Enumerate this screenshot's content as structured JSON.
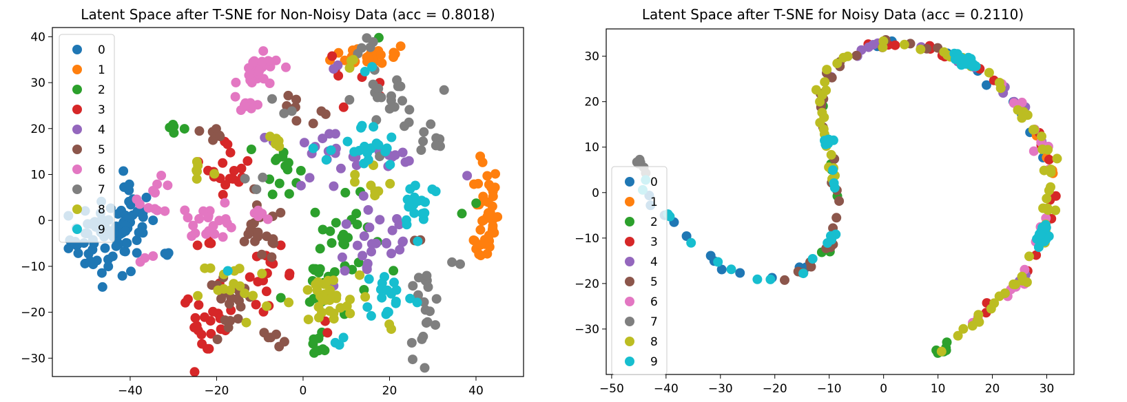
{
  "figure": {
    "legend_title": "",
    "class_labels": [
      "0",
      "1",
      "2",
      "3",
      "4",
      "5",
      "6",
      "7",
      "8",
      "9"
    ],
    "class_colors": [
      "#1f77b4",
      "#ff7f0e",
      "#2ca02c",
      "#d62728",
      "#9467bd",
      "#8c564b",
      "#e377c2",
      "#7f7f7f",
      "#bcbd22",
      "#17becf"
    ]
  },
  "chart_data": [
    {
      "type": "scatter",
      "title": "Latent Space after T-SNE for Non-Noisy Data (acc = 0.8018)",
      "xlabel": "",
      "ylabel": "",
      "xlim": [
        -58,
        51
      ],
      "ylim": [
        -34,
        42
      ],
      "xticks": [
        -40,
        -20,
        0,
        20,
        40
      ],
      "yticks": [
        -30,
        -20,
        -10,
        0,
        10,
        20,
        30,
        40
      ],
      "xtick_labels": [
        "−40",
        "−20",
        "0",
        "20",
        "40"
      ],
      "ytick_labels": [
        "−30",
        "−20",
        "−10",
        "0",
        "10",
        "20",
        "30",
        "40"
      ],
      "grid": false,
      "legend_position": "upper-left",
      "series": [
        {
          "name": "0",
          "clusters": [
            {
              "cx": -45,
              "cy": -4,
              "sx": 4.5,
              "sy": 4.0,
              "n": 70
            },
            {
              "cx": -40,
              "cy": 2,
              "sx": 2.5,
              "sy": 3.5,
              "n": 20
            },
            {
              "cx": -31,
              "cy": -8,
              "sx": 1,
              "sy": 1,
              "n": 3
            }
          ]
        },
        {
          "name": "1",
          "clusters": [
            {
              "cx": 42.5,
              "cy": 2,
              "sx": 1.3,
              "sy": 5.5,
              "n": 40
            },
            {
              "cx": 40,
              "cy": -6,
              "sx": 1.5,
              "sy": 1.5,
              "n": 7
            },
            {
              "cx": 16,
              "cy": 36,
              "sx": 4.5,
              "sy": 1.3,
              "n": 30
            }
          ]
        },
        {
          "name": "2",
          "clusters": [
            {
              "cx": -30,
              "cy": 20,
              "sx": 1.5,
              "sy": 1,
              "n": 5
            },
            {
              "cx": -5,
              "cy": 12,
              "sx": 2,
              "sy": 3,
              "n": 14
            },
            {
              "cx": 10,
              "cy": -3,
              "sx": 4,
              "sy": 4,
              "n": 22
            },
            {
              "cx": 3,
              "cy": -14,
              "sx": 4,
              "sy": 4,
              "n": 18
            },
            {
              "cx": 4,
              "cy": -27,
              "sx": 2,
              "sy": 1.5,
              "n": 8
            },
            {
              "cx": 38,
              "cy": 2,
              "sx": 1,
              "sy": 1,
              "n": 2
            },
            {
              "cx": 18,
              "cy": 40,
              "sx": 0.5,
              "sy": 0.5,
              "n": 1
            }
          ]
        },
        {
          "name": "3",
          "clusters": [
            {
              "cx": -17,
              "cy": 12,
              "sx": 2.5,
              "sy": 3,
              "n": 18
            },
            {
              "cx": -22,
              "cy": -23,
              "sx": 3,
              "sy": 4,
              "n": 22
            },
            {
              "cx": -8,
              "cy": -12,
              "sx": 3,
              "sy": 3,
              "n": 15
            },
            {
              "cx": 8,
              "cy": 30,
              "sx": 2,
              "sy": 3,
              "n": 4
            },
            {
              "cx": 15,
              "cy": 30,
              "sx": 3,
              "sy": 2,
              "n": 3
            },
            {
              "cx": -22,
              "cy": -5,
              "sx": 1.5,
              "sy": 1.5,
              "n": 4
            },
            {
              "cx": 5,
              "cy": -21,
              "sx": 2,
              "sy": 2,
              "n": 3
            }
          ]
        },
        {
          "name": "4",
          "clusters": [
            {
              "cx": 5,
              "cy": 13,
              "sx": 4,
              "sy": 3,
              "n": 18
            },
            {
              "cx": 17,
              "cy": -5,
              "sx": 5,
              "sy": 5,
              "n": 25
            },
            {
              "cx": 20,
              "cy": 14,
              "sx": 4,
              "sy": 2,
              "n": 10
            },
            {
              "cx": 8,
              "cy": 34,
              "sx": 1,
              "sy": 1,
              "n": 2
            },
            {
              "cx": 38,
              "cy": 10,
              "sx": 0.5,
              "sy": 0.5,
              "n": 1
            },
            {
              "cx": -8,
              "cy": 17,
              "sx": 1,
              "sy": 1,
              "n": 2
            }
          ]
        },
        {
          "name": "5",
          "clusters": [
            {
              "cx": -10,
              "cy": -3,
              "sx": 3,
              "sy": 3,
              "n": 20
            },
            {
              "cx": -17,
              "cy": -20,
              "sx": 3,
              "sy": 4,
              "n": 18
            },
            {
              "cx": -21,
              "cy": 19,
              "sx": 2,
              "sy": 2,
              "n": 6
            },
            {
              "cx": -3,
              "cy": 24,
              "sx": 1,
              "sy": 1.5,
              "n": 5
            },
            {
              "cx": 5,
              "cy": 22,
              "sx": 1,
              "sy": 1,
              "n": 3
            },
            {
              "cx": -6,
              "cy": -25,
              "sx": 2,
              "sy": 1.5,
              "n": 6
            },
            {
              "cx": 26,
              "cy": -4,
              "sx": 1,
              "sy": 1,
              "n": 2
            }
          ]
        },
        {
          "name": "6",
          "clusters": [
            {
              "cx": -10,
              "cy": 32,
              "sx": 2.5,
              "sy": 2,
              "n": 26
            },
            {
              "cx": -12,
              "cy": 25,
              "sx": 1.5,
              "sy": 1,
              "n": 7
            },
            {
              "cx": -22,
              "cy": 0,
              "sx": 3.5,
              "sy": 2,
              "n": 22
            },
            {
              "cx": -34,
              "cy": 5,
              "sx": 2,
              "sy": 2,
              "n": 10
            },
            {
              "cx": -9,
              "cy": 2,
              "sx": 2,
              "sy": 1,
              "n": 5
            },
            {
              "cx": -36,
              "cy": -8,
              "sx": 1,
              "sy": 0.5,
              "n": 3
            }
          ]
        },
        {
          "name": "7",
          "clusters": [
            {
              "cx": 28,
              "cy": -20,
              "sx": 2,
              "sy": 5,
              "n": 20
            },
            {
              "cx": 20,
              "cy": 26,
              "sx": 4,
              "sy": 3,
              "n": 22
            },
            {
              "cx": 29,
              "cy": 17,
              "sx": 2,
              "sy": 1.5,
              "n": 8
            },
            {
              "cx": 15,
              "cy": 38,
              "sx": 2,
              "sy": 1,
              "n": 5
            },
            {
              "cx": 35,
              "cy": -9,
              "sx": 0.8,
              "sy": 0.5,
              "n": 2
            },
            {
              "cx": -4,
              "cy": 25,
              "sx": 2,
              "sy": 1,
              "n": 3
            },
            {
              "cx": -12,
              "cy": 9,
              "sx": 2,
              "sy": 1,
              "n": 3
            }
          ]
        },
        {
          "name": "8",
          "clusters": [
            {
              "cx": 5,
              "cy": -18,
              "sx": 4,
              "sy": 3,
              "n": 32
            },
            {
              "cx": -16,
              "cy": -15,
              "sx": 4,
              "sy": 4,
              "n": 16
            },
            {
              "cx": -24,
              "cy": 11,
              "sx": 2,
              "sy": 2,
              "n": 6
            },
            {
              "cx": -6,
              "cy": 17,
              "sx": 1.5,
              "sy": 1.5,
              "n": 5
            },
            {
              "cx": 15,
              "cy": 8,
              "sx": 3,
              "sy": 3,
              "n": 8
            },
            {
              "cx": 12,
              "cy": 34,
              "sx": 1.5,
              "sy": 1,
              "n": 3
            },
            {
              "cx": 20,
              "cy": -23,
              "sx": 1,
              "sy": 1,
              "n": 2
            }
          ]
        },
        {
          "name": "9",
          "clusters": [
            {
              "cx": 20,
              "cy": -16,
              "sx": 3,
              "sy": 3,
              "n": 18
            },
            {
              "cx": 27,
              "cy": 4,
              "sx": 2.5,
              "sy": 3,
              "n": 18
            },
            {
              "cx": 14,
              "cy": 15,
              "sx": 4,
              "sy": 3,
              "n": 22
            },
            {
              "cx": -18,
              "cy": -11,
              "sx": 0.5,
              "sy": 0.5,
              "n": 1
            },
            {
              "cx": 8,
              "cy": -26,
              "sx": 1.5,
              "sy": 1,
              "n": 3
            },
            {
              "cx": 15,
              "cy": 33,
              "sx": 1,
              "sy": 0.5,
              "n": 2
            }
          ]
        }
      ]
    },
    {
      "type": "scatter",
      "title": "Latent Space after T-SNE for Noisy Data (acc = 0.2110)",
      "xlabel": "",
      "ylabel": "",
      "xlim": [
        -51,
        35
      ],
      "ylim": [
        -40,
        36
      ],
      "xticks": [
        -50,
        -40,
        -30,
        -20,
        -10,
        0,
        10,
        20,
        30
      ],
      "yticks": [
        -30,
        -20,
        -10,
        0,
        10,
        20,
        30
      ],
      "xtick_labels": [
        "−50",
        "−40",
        "−30",
        "−20",
        "−10",
        "0",
        "10",
        "20",
        "30"
      ],
      "ytick_labels": [
        "−30",
        "−20",
        "−10",
        "0",
        "10",
        "20",
        "30"
      ],
      "grid": false,
      "legend_position": "lower-left",
      "curve_path": [
        [
          -46.5,
          9.5
        ],
        [
          -43,
          0
        ],
        [
          -38,
          -8
        ],
        [
          -30,
          -16
        ],
        [
          -20,
          -20
        ],
        [
          -14,
          -17
        ],
        [
          -10,
          -12
        ],
        [
          -8,
          -5
        ],
        [
          -9,
          4
        ],
        [
          -11,
          13
        ],
        [
          -12,
          22
        ],
        [
          -8,
          29
        ],
        [
          0,
          33
        ],
        [
          8,
          32
        ],
        [
          15,
          29
        ],
        [
          22,
          23
        ],
        [
          27,
          16
        ],
        [
          30,
          8
        ],
        [
          31,
          0
        ],
        [
          29,
          -10
        ],
        [
          25,
          -20
        ],
        [
          17,
          -28
        ],
        [
          12,
          -33
        ],
        [
          9.5,
          -36.5
        ]
      ],
      "series": [
        {
          "name": "0",
          "segments": [
            [
              0.05,
              0.25
            ],
            [
              0.5,
              0.75
            ]
          ],
          "n": 24
        },
        {
          "name": "1",
          "segments": [
            [
              0.7,
              0.8
            ]
          ],
          "n": 6
        },
        {
          "name": "2",
          "segments": [
            [
              0.97,
              1.0
            ],
            [
              0.2,
              0.45
            ]
          ],
          "n": 14
        },
        {
          "name": "3",
          "segments": [
            [
              0.5,
              0.95
            ]
          ],
          "n": 24
        },
        {
          "name": "4",
          "segments": [
            [
              0.45,
              0.9
            ]
          ],
          "n": 20
        },
        {
          "name": "5",
          "segments": [
            [
              0.2,
              0.6
            ]
          ],
          "n": 30
        },
        {
          "name": "6",
          "segments": [
            [
              0.65,
              0.95
            ]
          ],
          "n": 20
        },
        {
          "name": "7",
          "segments": [
            [
              0.0,
              0.03
            ]
          ],
          "n": 6
        },
        {
          "name": "8",
          "segments": [
            [
              0.35,
              1.0
            ]
          ],
          "n": 80
        },
        {
          "name": "9",
          "segments": [
            [
              0.03,
              0.42
            ],
            [
              0.6,
              0.62
            ],
            [
              0.82,
              0.84
            ]
          ],
          "n": 70
        }
      ]
    }
  ]
}
